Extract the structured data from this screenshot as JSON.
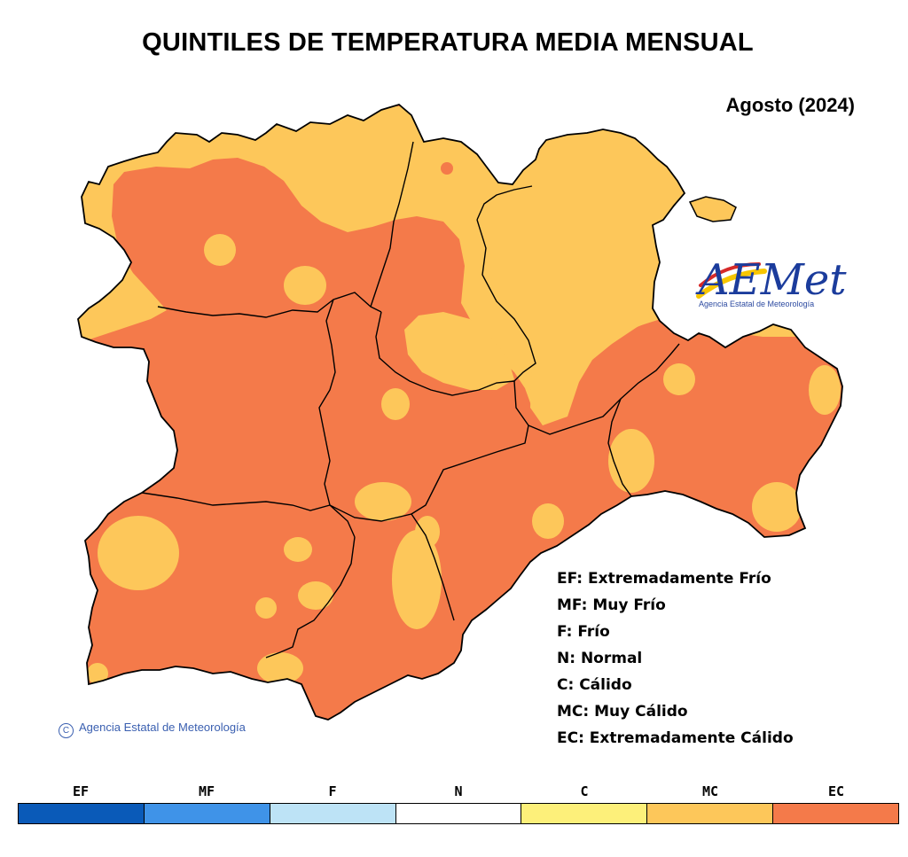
{
  "title": "QUINTILES DE TEMPERATURA MEDIA MENSUAL",
  "period": "Agosto (2024)",
  "logo": {
    "text": "AEMet",
    "subtitle": "Agencia Estatal de Meteorología"
  },
  "copyright": "Agencia Estatal de Meteorología",
  "legend": [
    "EF: Extremadamente Frío",
    "MF: Muy Frío",
    "F: Frío",
    "N: Normal",
    "C: Cálido",
    "MC: Muy Cálido",
    "EC: Extremadamente Cálido"
  ],
  "scale": [
    {
      "code": "EF",
      "color": "#0a5ab8"
    },
    {
      "code": "MF",
      "color": "#3f93e8"
    },
    {
      "code": "F",
      "color": "#bde3f6"
    },
    {
      "code": "N",
      "color": "#ffffff"
    },
    {
      "code": "C",
      "color": "#fdf07a"
    },
    {
      "code": "MC",
      "color": "#fdc75a"
    },
    {
      "code": "EC",
      "color": "#f47a4a"
    }
  ],
  "map_colors": {
    "mc": "#fdc75a",
    "ec": "#f47a4a",
    "border": "#000000"
  }
}
